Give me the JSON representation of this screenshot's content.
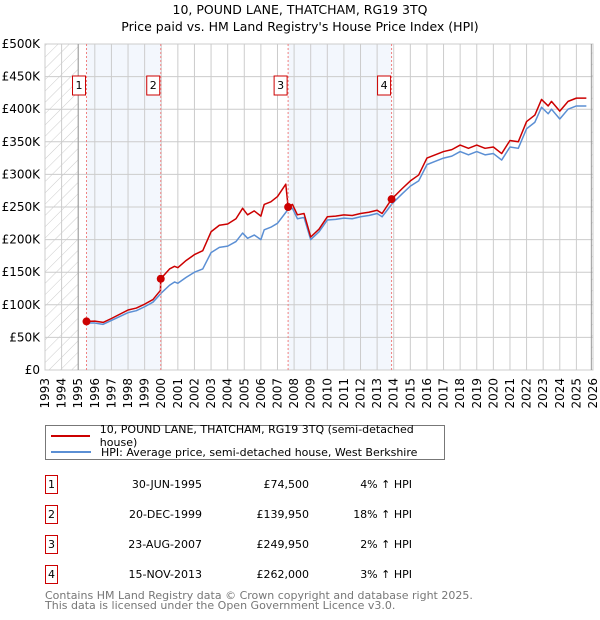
{
  "chart_data": {
    "type": "line",
    "title": "10, POUND LANE, THATCHAM, RG19 3TQ",
    "subtitle": "Price paid vs. HM Land Registry's House Price Index (HPI)",
    "xlim": [
      1993,
      2026
    ],
    "ylim": [
      0,
      500000
    ],
    "x_ticks": [
      "1993",
      "1994",
      "1995",
      "1996",
      "1997",
      "1998",
      "1999",
      "2000",
      "2001",
      "2002",
      "2003",
      "2004",
      "2005",
      "2006",
      "2007",
      "2008",
      "2009",
      "2010",
      "2011",
      "2012",
      "2013",
      "2014",
      "2015",
      "2016",
      "2017",
      "2018",
      "2019",
      "2020",
      "2021",
      "2022",
      "2023",
      "2024",
      "2025",
      "2026"
    ],
    "y_ticks": [
      {
        "value": 0,
        "label": "£0"
      },
      {
        "value": 50000,
        "label": "£50K"
      },
      {
        "value": 100000,
        "label": "£100K"
      },
      {
        "value": 150000,
        "label": "£150K"
      },
      {
        "value": 200000,
        "label": "£200K"
      },
      {
        "value": 250000,
        "label": "£250K"
      },
      {
        "value": 300000,
        "label": "£300K"
      },
      {
        "value": 350000,
        "label": "£350K"
      },
      {
        "value": 400000,
        "label": "£400K"
      },
      {
        "value": 450000,
        "label": "£450K"
      },
      {
        "value": 500000,
        "label": "£500K"
      }
    ],
    "grid": true,
    "hatched_ranges": [
      [
        1993,
        1995
      ],
      [
        2025.9,
        2026
      ]
    ],
    "shaded_ranges": [
      [
        1995.5,
        1999.97
      ],
      [
        2007.64,
        2013.87
      ]
    ],
    "series": [
      {
        "name": "10, POUND LANE, THATCHAM, RG19 3TQ (semi-detached house)",
        "color": "#cc0000",
        "points": [
          [
            1995.5,
            74500
          ],
          [
            1996,
            75000
          ],
          [
            1996.5,
            73000
          ],
          [
            1997,
            79000
          ],
          [
            1998,
            92000
          ],
          [
            1998.5,
            95000
          ],
          [
            1999,
            101000
          ],
          [
            1999.5,
            108000
          ],
          [
            1999.95,
            122000
          ],
          [
            1999.97,
            139950
          ],
          [
            2000.5,
            155000
          ],
          [
            2000.8,
            159000
          ],
          [
            2001,
            157000
          ],
          [
            2001.5,
            168000
          ],
          [
            2002,
            177000
          ],
          [
            2002.5,
            183000
          ],
          [
            2003,
            212000
          ],
          [
            2003.5,
            222000
          ],
          [
            2004,
            224000
          ],
          [
            2004.5,
            232000
          ],
          [
            2004.9,
            248000
          ],
          [
            2005.2,
            238000
          ],
          [
            2005.6,
            244000
          ],
          [
            2006,
            236000
          ],
          [
            2006.2,
            254000
          ],
          [
            2006.6,
            258000
          ],
          [
            2007,
            266000
          ],
          [
            2007.5,
            285000
          ],
          [
            2007.64,
            249950
          ],
          [
            2007.9,
            254000
          ],
          [
            2008.2,
            238000
          ],
          [
            2008.6,
            240000
          ],
          [
            2009,
            204000
          ],
          [
            2009.5,
            216000
          ],
          [
            2010,
            235000
          ],
          [
            2010.5,
            236000
          ],
          [
            2011,
            238000
          ],
          [
            2011.5,
            237000
          ],
          [
            2012,
            240000
          ],
          [
            2012.5,
            242000
          ],
          [
            2013,
            245000
          ],
          [
            2013.3,
            240000
          ],
          [
            2013.87,
            262000
          ],
          [
            2014.5,
            278000
          ],
          [
            2015,
            290000
          ],
          [
            2015.5,
            299000
          ],
          [
            2016,
            325000
          ],
          [
            2016.5,
            330000
          ],
          [
            2017,
            335000
          ],
          [
            2017.5,
            338000
          ],
          [
            2018,
            345000
          ],
          [
            2018.5,
            340000
          ],
          [
            2019,
            345000
          ],
          [
            2019.5,
            340000
          ],
          [
            2020,
            342000
          ],
          [
            2020.5,
            332000
          ],
          [
            2021,
            352000
          ],
          [
            2021.5,
            350000
          ],
          [
            2022,
            381000
          ],
          [
            2022.5,
            391000
          ],
          [
            2022.9,
            415000
          ],
          [
            2023.3,
            405000
          ],
          [
            2023.5,
            412000
          ],
          [
            2024,
            397000
          ],
          [
            2024.5,
            412000
          ],
          [
            2025,
            417000
          ],
          [
            2025.6,
            417000
          ]
        ]
      },
      {
        "name": "HPI: Average price, semi-detached house, West Berkshire",
        "color": "#5b8fd4",
        "points": [
          [
            1995.5,
            72000
          ],
          [
            1996,
            72000
          ],
          [
            1996.5,
            70000
          ],
          [
            1997,
            76000
          ],
          [
            1998,
            88000
          ],
          [
            1998.5,
            91000
          ],
          [
            1999,
            97000
          ],
          [
            1999.5,
            104000
          ],
          [
            2000,
            118000
          ],
          [
            2000.5,
            130000
          ],
          [
            2000.8,
            135000
          ],
          [
            2001,
            133000
          ],
          [
            2001.5,
            142000
          ],
          [
            2002,
            150000
          ],
          [
            2002.5,
            155000
          ],
          [
            2003,
            180000
          ],
          [
            2003.5,
            188000
          ],
          [
            2004,
            190000
          ],
          [
            2004.5,
            197000
          ],
          [
            2004.9,
            210000
          ],
          [
            2005.2,
            202000
          ],
          [
            2005.6,
            207000
          ],
          [
            2006,
            200000
          ],
          [
            2006.2,
            215000
          ],
          [
            2006.6,
            219000
          ],
          [
            2007,
            225000
          ],
          [
            2007.6,
            245000
          ],
          [
            2007.9,
            248000
          ],
          [
            2008.2,
            232000
          ],
          [
            2008.6,
            234000
          ],
          [
            2009,
            200000
          ],
          [
            2009.5,
            212000
          ],
          [
            2010,
            230000
          ],
          [
            2010.5,
            231000
          ],
          [
            2011,
            233000
          ],
          [
            2011.5,
            232000
          ],
          [
            2012,
            235000
          ],
          [
            2012.5,
            237000
          ],
          [
            2013,
            240000
          ],
          [
            2013.3,
            235000
          ],
          [
            2013.9,
            255000
          ],
          [
            2014.5,
            270000
          ],
          [
            2015,
            282000
          ],
          [
            2015.5,
            290000
          ],
          [
            2016,
            315000
          ],
          [
            2016.5,
            320000
          ],
          [
            2017,
            325000
          ],
          [
            2017.5,
            328000
          ],
          [
            2018,
            335000
          ],
          [
            2018.5,
            330000
          ],
          [
            2019,
            335000
          ],
          [
            2019.5,
            330000
          ],
          [
            2020,
            332000
          ],
          [
            2020.5,
            322000
          ],
          [
            2021,
            342000
          ],
          [
            2021.5,
            340000
          ],
          [
            2022,
            370000
          ],
          [
            2022.5,
            380000
          ],
          [
            2022.9,
            403000
          ],
          [
            2023.3,
            393000
          ],
          [
            2023.5,
            400000
          ],
          [
            2024,
            385000
          ],
          [
            2024.5,
            400000
          ],
          [
            2025,
            405000
          ],
          [
            2025.6,
            405000
          ]
        ]
      }
    ],
    "sales": [
      {
        "label": "1",
        "x": 1995.5,
        "value": 74500
      },
      {
        "label": "2",
        "x": 1999.97,
        "value": 139950
      },
      {
        "label": "3",
        "x": 2007.64,
        "value": 249950
      },
      {
        "label": "4",
        "x": 2013.87,
        "value": 262000
      }
    ],
    "legend_position": "below"
  },
  "legend": {
    "property_label": "10, POUND LANE, THATCHAM, RG19 3TQ (semi-detached house)",
    "hpi_label": "HPI: Average price, semi-detached house, West Berkshire"
  },
  "table": [
    {
      "num": "1",
      "date": "30-JUN-1995",
      "price": "£74,500",
      "hpi": "4% ↑ HPI"
    },
    {
      "num": "2",
      "date": "20-DEC-1999",
      "price": "£139,950",
      "hpi": "18% ↑ HPI"
    },
    {
      "num": "3",
      "date": "23-AUG-2007",
      "price": "£249,950",
      "hpi": "2% ↑ HPI"
    },
    {
      "num": "4",
      "date": "15-NOV-2013",
      "price": "£262,000",
      "hpi": "3% ↑ HPI"
    }
  ],
  "footer": {
    "line1": "Contains HM Land Registry data © Crown copyright and database right 2025.",
    "line2": "This data is licensed under the Open Government Licence v3.0."
  }
}
